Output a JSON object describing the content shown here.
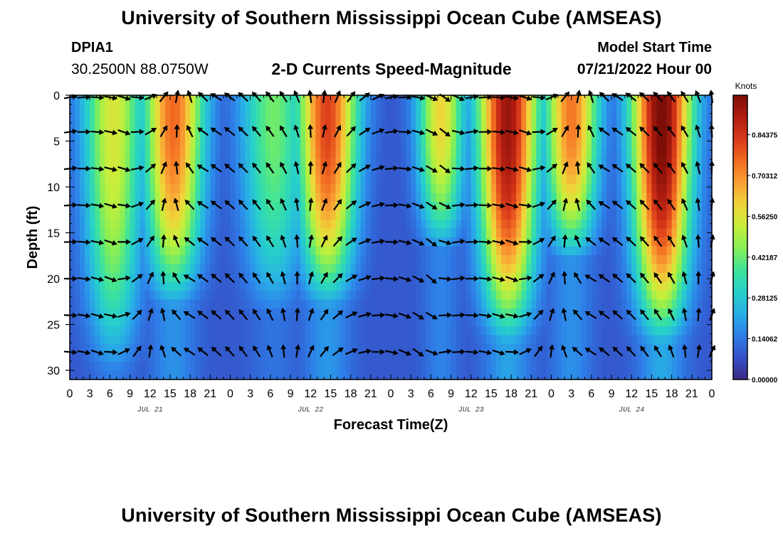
{
  "header": {
    "title": "University of Southern Mississippi Ocean Cube (AMSEAS)",
    "station_id": "DPIA1",
    "station_coords": "30.2500N  88.0750W",
    "subtitle": "2-D Currents Speed-Magnitude",
    "model_start_label": "Model Start Time",
    "model_start_value": "07/21/2022 Hour 00"
  },
  "footer": {
    "title": "University of Southern Mississippi Ocean Cube (AMSEAS)"
  },
  "chart_data": {
    "type": "heatmap",
    "title": "2-D Currents Speed-Magnitude",
    "xlabel": "Forecast Time(Z)",
    "ylabel": "Depth (ft)",
    "x_range_hours": [
      0,
      96
    ],
    "y_range_ft": [
      0,
      31
    ],
    "x_tick_labels": [
      "0",
      "3",
      "6",
      "9",
      "12",
      "15",
      "18",
      "21",
      "0",
      "3",
      "6",
      "9",
      "12",
      "15",
      "18",
      "21",
      "0",
      "3",
      "6",
      "9",
      "12",
      "15",
      "18",
      "21",
      "0",
      "3",
      "6",
      "9",
      "12",
      "15",
      "18",
      "21",
      "0"
    ],
    "day_labels": [
      {
        "label": "JUL 21",
        "hour": 12
      },
      {
        "label": "JUL 22",
        "hour": 36
      },
      {
        "label": "JUL 23",
        "hour": 60
      },
      {
        "label": "JUL 24",
        "hour": 84
      }
    ],
    "y_ticks": [
      0,
      5,
      10,
      15,
      20,
      25,
      30
    ],
    "colorbar": {
      "unit": "Knots",
      "min": 0.0,
      "max": 0.98,
      "tick_values": [
        0.84375,
        0.703125,
        0.5625,
        0.421875,
        0.28125,
        0.140625,
        0.0
      ],
      "tick_labels": [
        "0.84375",
        "0.70312",
        "0.56250",
        "0.42187",
        "0.28125",
        "0.14062",
        "0.00000"
      ],
      "colors": [
        "#3a2a85",
        "#3551c8",
        "#2e7ee8",
        "#28aee6",
        "#27d0c9",
        "#3fe39a",
        "#86ef55",
        "#c6ef3b",
        "#efd53a",
        "#f9a134",
        "#f26c22",
        "#d7381a",
        "#b01d10",
        "#7d0e07"
      ]
    },
    "speed_peaks": [
      {
        "hour": 6.5,
        "width_hours": 4.5,
        "speed": 0.48,
        "depth_ft": 28
      },
      {
        "hour": 15.5,
        "width_hours": 4.5,
        "speed": 0.68,
        "depth_ft": 21
      },
      {
        "hour": 30.5,
        "width_hours": 5.0,
        "speed": 0.35,
        "depth_ft": 22
      },
      {
        "hour": 38.5,
        "width_hours": 4.5,
        "speed": 0.74,
        "depth_ft": 21
      },
      {
        "hour": 55.5,
        "width_hours": 3.5,
        "speed": 0.52,
        "depth_ft": 15
      },
      {
        "hour": 65.5,
        "width_hours": 4.5,
        "speed": 0.86,
        "depth_ft": 25
      },
      {
        "hour": 75.0,
        "width_hours": 4.0,
        "speed": 0.66,
        "depth_ft": 16
      },
      {
        "hour": 88.5,
        "width_hours": 4.5,
        "speed": 0.92,
        "depth_ft": 25
      }
    ],
    "vector_depths_ft": [
      0,
      4,
      8,
      12,
      16,
      20,
      24,
      28
    ],
    "vector_direction_cycle": [
      {
        "hour": 0,
        "angle_deg": 80
      },
      {
        "hour": 9,
        "angle_deg": 110
      },
      {
        "hour": 21,
        "angle_deg": -60
      },
      {
        "hour": 33,
        "angle_deg": -30
      },
      {
        "hour": 45,
        "angle_deg": 60
      },
      {
        "hour": 57,
        "angle_deg": 130
      }
    ]
  }
}
